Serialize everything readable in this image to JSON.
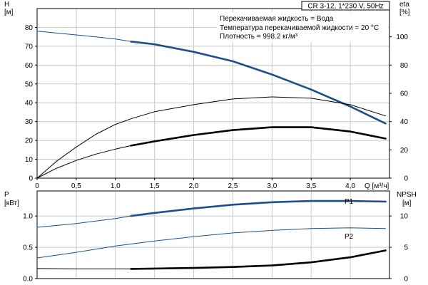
{
  "title": "CR 3-12, 1*230 V, 50Hz",
  "info_lines": [
    "Перекачиваемая жидкость = Вода",
    "Температура перекачиваемой жидкости = 20 °C",
    "Плотность = 998.2 кг/м³"
  ],
  "colors": {
    "blue": "#1f4e8c",
    "black": "#000000",
    "grid": "#c8c8c8"
  },
  "chart_data": [
    {
      "type": "line",
      "panel": "upper",
      "x_label": "Q [м³/ч]",
      "xlim": [
        0,
        4.5
      ],
      "x_ticks": [
        "0",
        "0,5",
        "1,0",
        "1,5",
        "2,0",
        "2,5",
        "3,0",
        "3,5",
        "4,0"
      ],
      "left_axis": {
        "label_line1": "H",
        "label_line2": "[м]",
        "ylim": [
          0,
          90
        ],
        "ticks": [
          "0",
          "10",
          "20",
          "30",
          "40",
          "50",
          "60",
          "70",
          "80"
        ]
      },
      "right_axis": {
        "label_line1": "eta",
        "label_line2": "[%]",
        "ylim": [
          0,
          120
        ],
        "ticks": [
          "0",
          "20",
          "40",
          "60",
          "80",
          "100"
        ]
      },
      "series": [
        {
          "key": "H",
          "axis": "left",
          "color_key": "blue",
          "segments": [
            {
              "style": "thin",
              "x": [
                0,
                0.25,
                0.5,
                0.75,
                1.0,
                1.2
              ],
              "y": [
                78,
                77.0,
                76.0,
                75.0,
                73.8,
                72.5
              ]
            },
            {
              "style": "thick",
              "x": [
                1.2,
                1.5,
                2.0,
                2.5,
                3.0,
                3.5,
                4.0,
                4.45
              ],
              "y": [
                72.5,
                71,
                67,
                62,
                55,
                47,
                38,
                29
              ]
            }
          ]
        },
        {
          "key": "eta_total",
          "axis": "right",
          "color_key": "black",
          "segments": [
            {
              "style": "thin",
              "x": [
                0,
                0.25,
                0.5,
                0.75,
                1.0,
                1.2,
                1.5,
                2.0,
                2.5,
                3.0,
                3.5,
                4.0,
                4.45
              ],
              "y": [
                0,
                12,
                22,
                31,
                38,
                42,
                47,
                52,
                56,
                57.5,
                56.5,
                52,
                44
              ]
            }
          ]
        },
        {
          "key": "eta_pump",
          "axis": "right",
          "color_key": "black",
          "segments": [
            {
              "style": "thin",
              "x": [
                0,
                0.25,
                0.5,
                0.75,
                1.0,
                1.2
              ],
              "y": [
                0,
                7,
                12.5,
                17,
                20.5,
                23
              ]
            },
            {
              "style": "thick",
              "x": [
                1.2,
                1.5,
                2.0,
                2.5,
                3.0,
                3.5,
                4.0,
                4.45
              ],
              "y": [
                23,
                26,
                30.5,
                34,
                36,
                36,
                33,
                28
              ]
            }
          ]
        }
      ]
    },
    {
      "type": "line",
      "panel": "lower",
      "xlim": [
        0,
        4.5
      ],
      "left_axis": {
        "label_line1": "P",
        "label_line2": "[кВт]",
        "ylim": [
          0,
          1.4
        ],
        "ticks": [
          "0.0",
          "0.5",
          "1.0"
        ]
      },
      "right_axis": {
        "label_line1": "NPSH",
        "label_line2": "[м]",
        "ylim": [
          0,
          14
        ],
        "ticks": [
          "0",
          "5",
          "10"
        ]
      },
      "series": [
        {
          "key": "P1",
          "name": "P1",
          "axis": "left",
          "color_key": "blue",
          "segments": [
            {
              "style": "thin",
              "x": [
                0,
                0.5,
                1.0,
                1.2
              ],
              "y": [
                0.82,
                0.88,
                0.96,
                1.0
              ]
            },
            {
              "style": "thick",
              "x": [
                1.2,
                1.5,
                2.0,
                2.5,
                3.0,
                3.5,
                4.0,
                4.45
              ],
              "y": [
                1.0,
                1.05,
                1.12,
                1.18,
                1.22,
                1.24,
                1.24,
                1.23
              ]
            }
          ]
        },
        {
          "key": "P2",
          "name": "P2",
          "axis": "left",
          "color_key": "blue",
          "segments": [
            {
              "style": "thin",
              "x": [
                0,
                0.5,
                1.0,
                1.5,
                2.0,
                2.5,
                3.0,
                3.5,
                4.0,
                4.45
              ],
              "y": [
                0.33,
                0.42,
                0.52,
                0.6,
                0.67,
                0.73,
                0.77,
                0.8,
                0.81,
                0.8
              ]
            }
          ]
        },
        {
          "key": "NPSH",
          "axis": "right",
          "color_key": "black",
          "segments": [
            {
              "style": "thin",
              "x": [
                0,
                0.5,
                1.0,
                1.2
              ],
              "y": [
                1.6,
                1.55,
                1.55,
                1.55
              ]
            },
            {
              "style": "thick",
              "x": [
                1.2,
                1.5,
                2.0,
                2.5,
                3.0,
                3.5,
                4.0,
                4.45
              ],
              "y": [
                1.55,
                1.6,
                1.7,
                1.85,
                2.1,
                2.6,
                3.4,
                4.5
              ]
            }
          ]
        }
      ]
    }
  ]
}
